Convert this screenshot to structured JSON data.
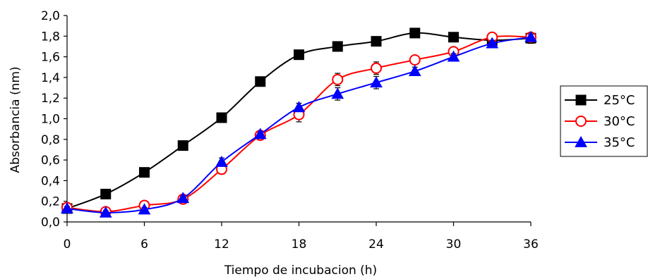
{
  "chart_data": {
    "type": "line",
    "xlabel": "Tiempo de incubacion (h)",
    "ylabel": "Absorbancia (nm)",
    "xlim": [
      0,
      36
    ],
    "ylim": [
      0,
      2.0
    ],
    "x_ticks": [
      "0",
      "6",
      "12",
      "18",
      "24",
      "30",
      "36"
    ],
    "y_ticks": [
      "0,0",
      "0,2",
      "0,4",
      "0,6",
      "0,8",
      "1,0",
      "1,2",
      "1,4",
      "1,6",
      "1,8",
      "2,0"
    ],
    "x": [
      0,
      3,
      6,
      9,
      12,
      15,
      18,
      21,
      24,
      27,
      30,
      33,
      36
    ],
    "grid": false,
    "legend_position": "right",
    "series": [
      {
        "name": "25°C",
        "color": "#000000",
        "marker": "square-filled",
        "values": [
          0.13,
          0.27,
          0.48,
          0.74,
          1.01,
          1.36,
          1.62,
          1.7,
          1.75,
          1.83,
          1.79,
          1.76,
          1.78
        ],
        "errors": [
          0.01,
          0.02,
          0.02,
          0.02,
          0.02,
          0.02,
          0.02,
          0.02,
          0.02,
          0.02,
          0.02,
          0.02,
          0.05
        ]
      },
      {
        "name": "30°C",
        "color": "#ff0000",
        "marker": "circle-open",
        "values": [
          0.14,
          0.1,
          0.16,
          0.22,
          0.51,
          0.84,
          1.04,
          1.38,
          1.49,
          1.57,
          1.65,
          1.79,
          1.79
        ],
        "errors": [
          0.02,
          0.02,
          0.02,
          0.02,
          0.02,
          0.02,
          0.07,
          0.06,
          0.06,
          0.04,
          0.04,
          0.02,
          0.02
        ]
      },
      {
        "name": "35°C",
        "color": "#0000ff",
        "marker": "triangle-filled",
        "values": [
          0.13,
          0.09,
          0.12,
          0.23,
          0.58,
          0.85,
          1.11,
          1.24,
          1.35,
          1.46,
          1.6,
          1.73,
          1.79
        ],
        "errors": [
          0.02,
          0.02,
          0.02,
          0.02,
          0.04,
          0.02,
          0.04,
          0.06,
          0.06,
          0.04,
          0.03,
          0.03,
          0.03
        ]
      }
    ]
  }
}
